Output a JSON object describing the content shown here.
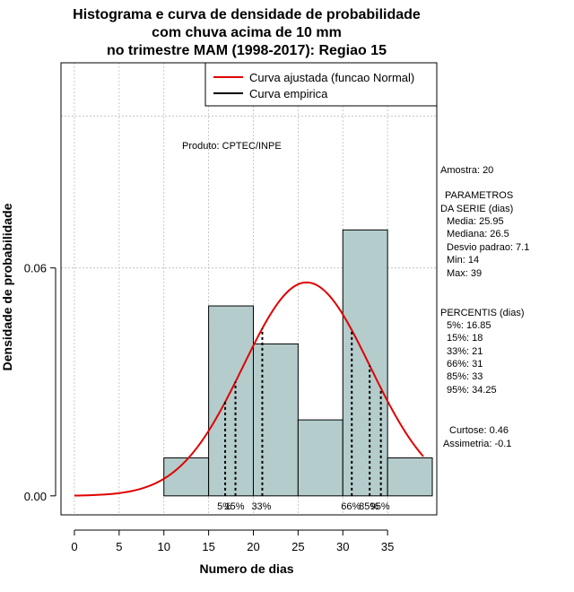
{
  "chart_data": {
    "type": "histogram",
    "title": [
      "Histograma e curva de densidade de probabilidade",
      "com chuva acima de 10 mm",
      "no trimestre MAM (1998-2017): Regiao 15"
    ],
    "xlabel": "Numero de dias",
    "ylabel": "Densidade de probabilidade",
    "xlim": [
      -1.5,
      40.5
    ],
    "ylim": [
      -0.005,
      0.114
    ],
    "xticks": [
      0,
      5,
      10,
      15,
      20,
      25,
      30,
      35
    ],
    "yticks": [
      0.0,
      0.06
    ],
    "ytick_labels": [
      "0.00",
      "0.06"
    ],
    "grid_y": [
      0.06,
      0.1
    ],
    "bins": [
      {
        "from": 10,
        "to": 15,
        "density": 0.01
      },
      {
        "from": 15,
        "to": 20,
        "density": 0.05
      },
      {
        "from": 20,
        "to": 25,
        "density": 0.04
      },
      {
        "from": 25,
        "to": 30,
        "density": 0.02
      },
      {
        "from": 30,
        "to": 35,
        "density": 0.07
      },
      {
        "from": 35,
        "to": 40,
        "density": 0.01
      }
    ],
    "normal_fit": {
      "mean": 25.95,
      "sd": 7.1,
      "x_from": 0,
      "x_to": 39
    },
    "percentile_lines": [
      {
        "label": "5%",
        "x": 16.85
      },
      {
        "label": "15%",
        "x": 18
      },
      {
        "label": "33%",
        "x": 21
      },
      {
        "label": "66%",
        "x": 31
      },
      {
        "label": "85%",
        "x": 33
      },
      {
        "label": "95%",
        "x": 34.25
      }
    ],
    "legend": {
      "position": "top-right",
      "entries": [
        {
          "label": "Curva ajustada (funcao Normal)",
          "color": "#e00000"
        },
        {
          "label": "Curva empirica",
          "color": "#000000"
        }
      ]
    },
    "annotation": "Produto: CPTEC/INPE",
    "bar_color": "#b4cccc",
    "curve_color": "#e00000"
  },
  "side_panel": {
    "sample": "Amostra: 20",
    "params_title_1": "PARAMETROS",
    "params_title_2": "DA SERIE (dias)",
    "params": [
      "Media: 25.95",
      "Mediana: 26.5",
      "Desvio padrao: 7.1",
      "Min: 14",
      "Max: 39"
    ],
    "percentis_title": "PERCENTIS (dias)",
    "percentis": [
      "5%: 16.85",
      "15%: 18",
      "33%: 21",
      "66%: 31",
      "85%: 33",
      "95%: 34.25"
    ],
    "kurtosis": "Curtose: 0.46",
    "skewness": "Assimetria: -0.1"
  }
}
